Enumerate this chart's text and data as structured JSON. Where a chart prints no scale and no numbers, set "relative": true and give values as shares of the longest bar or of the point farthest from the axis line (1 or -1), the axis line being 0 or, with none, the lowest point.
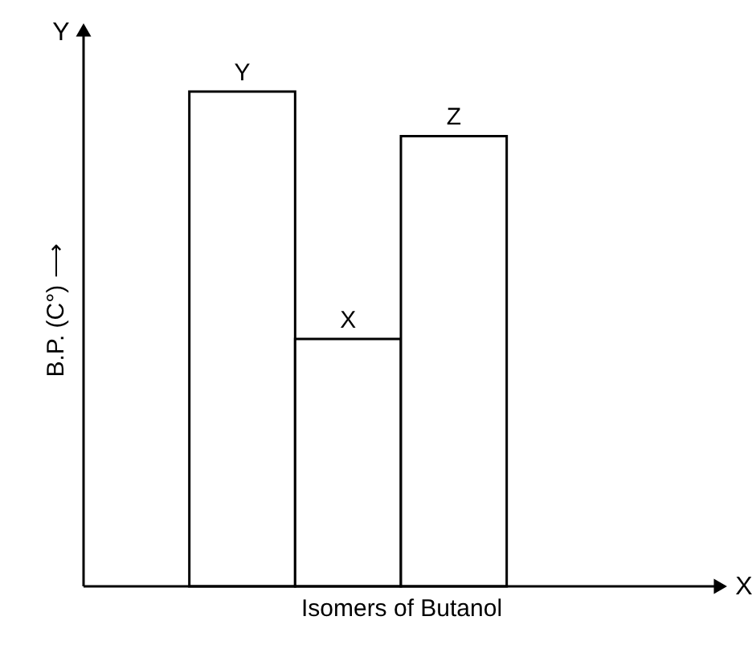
{
  "chart_data": {
    "type": "bar",
    "relative": true,
    "categories": [
      "Y",
      "X",
      "Z"
    ],
    "values": [
      1,
      0.5,
      0.91
    ],
    "colors": [
      "#ffffff",
      "#ffffff",
      "#ffffff"
    ],
    "xlabel": "Isomers of Butanol",
    "ylabel": "B.P. (C°) ⟶",
    "annotations": [
      "X",
      "Y"
    ],
    "grid": false
  }
}
